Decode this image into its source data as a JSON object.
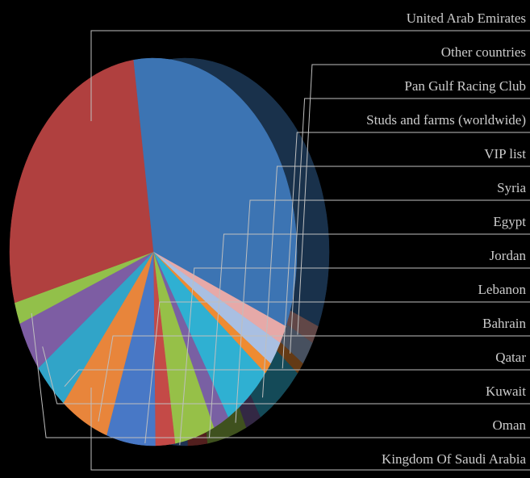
{
  "chart_data": {
    "type": "pie",
    "title": "",
    "categories": [
      "United Arab Emirates",
      "Other countries",
      "Pan Gulf Racing Club",
      "Studs and farms (worldwide)",
      "VIP list",
      "Syria",
      "Egypt",
      "Jordan",
      "Lebanon",
      "Bahrain",
      "Qatar",
      "Kuwait",
      "Oman",
      "Kingdom Of Saudi Arabia"
    ],
    "values": [
      33.5,
      1.5,
      2.0,
      1.0,
      5.5,
      1.8,
      4.5,
      2.2,
      5.5,
      5.5,
      4.0,
      4.2,
      1.8,
      27.0
    ],
    "colors": [
      "#3c74b3",
      "#e6a9a8",
      "#a9bfe2",
      "#ef8b31",
      "#2fb0d2",
      "#7960a3",
      "#96c048",
      "#c44a47",
      "#4878c6",
      "#e8853b",
      "#31a4c8",
      "#7d5da3",
      "#92c04a",
      "#b0403f"
    ],
    "label_color": "#cccccc",
    "legend": "right"
  }
}
